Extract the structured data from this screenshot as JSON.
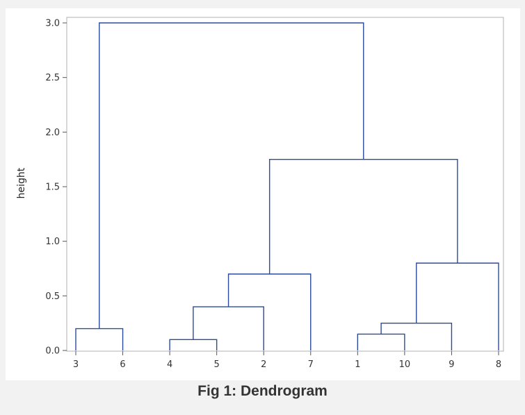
{
  "caption": "Fig 1: Dendrogram",
  "chart_data": {
    "type": "dendrogram",
    "title": "",
    "xlabel": "",
    "ylabel": "height",
    "ylim": [
      0,
      3.0
    ],
    "yticks": [
      "0.0",
      "0.5",
      "1.0",
      "1.5",
      "2.0",
      "2.5",
      "3.0"
    ],
    "leaf_order": [
      "3",
      "6",
      "4",
      "5",
      "2",
      "7",
      "1",
      "10",
      "9",
      "8"
    ],
    "merges": [
      {
        "left": "4",
        "right": "5",
        "height": 0.1
      },
      {
        "left": "1",
        "right": "10",
        "height": 0.15
      },
      {
        "left": "3",
        "right": "6",
        "height": 0.2
      },
      {
        "left": "(1,10)",
        "right": "9",
        "height": 0.25
      },
      {
        "left": "(4,5)",
        "right": "2",
        "height": 0.4
      },
      {
        "left": "((4,5),2)",
        "right": "7",
        "height": 0.7
      },
      {
        "left": "((1,10),9)",
        "right": "8",
        "height": 0.8
      },
      {
        "left": "(((4,5),2),7)",
        "right": "(((1,10),9),8)",
        "height": 1.75
      },
      {
        "left": "(3,6)",
        "right": "((((4,5),2),7),(((1,10),9),8))",
        "height": 3.0
      }
    ],
    "grid": false,
    "colors": {
      "line": "#2a4b9b",
      "frame": "#b0b0b0"
    }
  }
}
